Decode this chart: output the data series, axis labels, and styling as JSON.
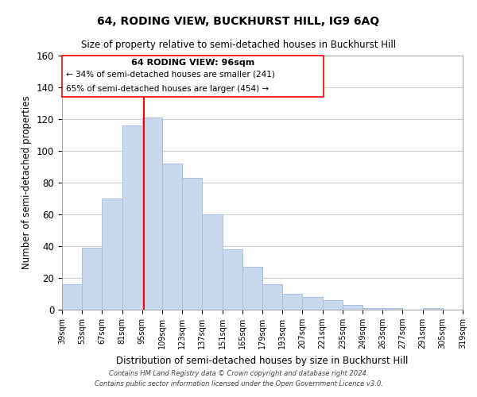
{
  "title": "64, RODING VIEW, BUCKHURST HILL, IG9 6AQ",
  "subtitle": "Size of property relative to semi-detached houses in Buckhurst Hill",
  "xlabel": "Distribution of semi-detached houses by size in Buckhurst Hill",
  "ylabel": "Number of semi-detached properties",
  "bar_color": "#c8d9ee",
  "bar_edgecolor": "#a8c0de",
  "reference_line_x": 96,
  "reference_line_color": "red",
  "annotation_title": "64 RODING VIEW: 96sqm",
  "annotation_line1": "← 34% of semi-detached houses are smaller (241)",
  "annotation_line2": "65% of semi-detached houses are larger (454) →",
  "bin_edges": [
    39,
    53,
    67,
    81,
    95,
    109,
    123,
    137,
    151,
    165,
    179,
    193,
    207,
    221,
    235,
    249,
    263,
    277,
    291,
    305,
    319
  ],
  "bin_labels": [
    "39sqm",
    "53sqm",
    "67sqm",
    "81sqm",
    "95sqm",
    "109sqm",
    "123sqm",
    "137sqm",
    "151sqm",
    "165sqm",
    "179sqm",
    "193sqm",
    "207sqm",
    "221sqm",
    "235sqm",
    "249sqm",
    "263sqm",
    "277sqm",
    "291sqm",
    "305sqm",
    "319sqm"
  ],
  "counts": [
    16,
    39,
    70,
    116,
    121,
    92,
    83,
    60,
    38,
    27,
    16,
    10,
    8,
    6,
    3,
    1,
    1,
    0,
    1,
    0
  ],
  "ylim": [
    0,
    160
  ],
  "yticks": [
    0,
    20,
    40,
    60,
    80,
    100,
    120,
    140,
    160
  ],
  "footer_line1": "Contains HM Land Registry data © Crown copyright and database right 2024.",
  "footer_line2": "Contains public sector information licensed under the Open Government Licence v3.0.",
  "grid_color": "#cccccc"
}
